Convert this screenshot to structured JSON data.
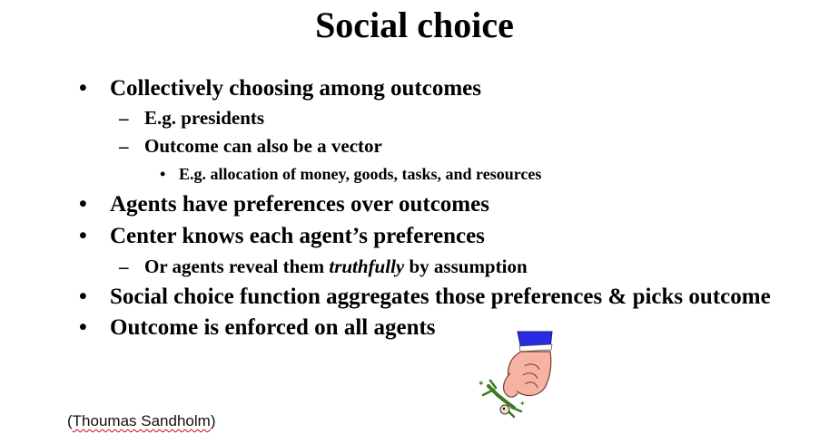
{
  "slide": {
    "title": "Social choice",
    "bullets": [
      {
        "marker": "•",
        "text": "Collectively choosing among outcomes"
      },
      {
        "marker": "–",
        "text": "E.g. presidents"
      },
      {
        "marker": "–",
        "text": "Outcome can also be a vector"
      },
      {
        "marker": "•",
        "text": "E.g. allocation of money, goods, tasks, and resources"
      },
      {
        "marker": "•",
        "text": "Agents have preferences over outcomes"
      },
      {
        "marker": "•",
        "text": "Center knows each agent’s preferences"
      },
      {
        "marker": "–",
        "text_before": "Or agents reveal them ",
        "text_italic": "truthfully",
        "text_after": " by assumption"
      },
      {
        "marker": "•",
        "text": "Social choice function aggregates those preferences & picks outcome"
      },
      {
        "marker": "•",
        "text": "Outcome is enforced on all agents"
      }
    ],
    "credit": {
      "open": "(",
      "name": "Thoumas Sandholm",
      "close": ")"
    },
    "clipart": "hand-squeezing-person-clipart"
  },
  "colors": {
    "text": "#000000",
    "sleeve": "#2a2ae0",
    "hand": "#f6b2a2",
    "figure": "#3d7a1e",
    "spellcheck": "#d0021b"
  }
}
